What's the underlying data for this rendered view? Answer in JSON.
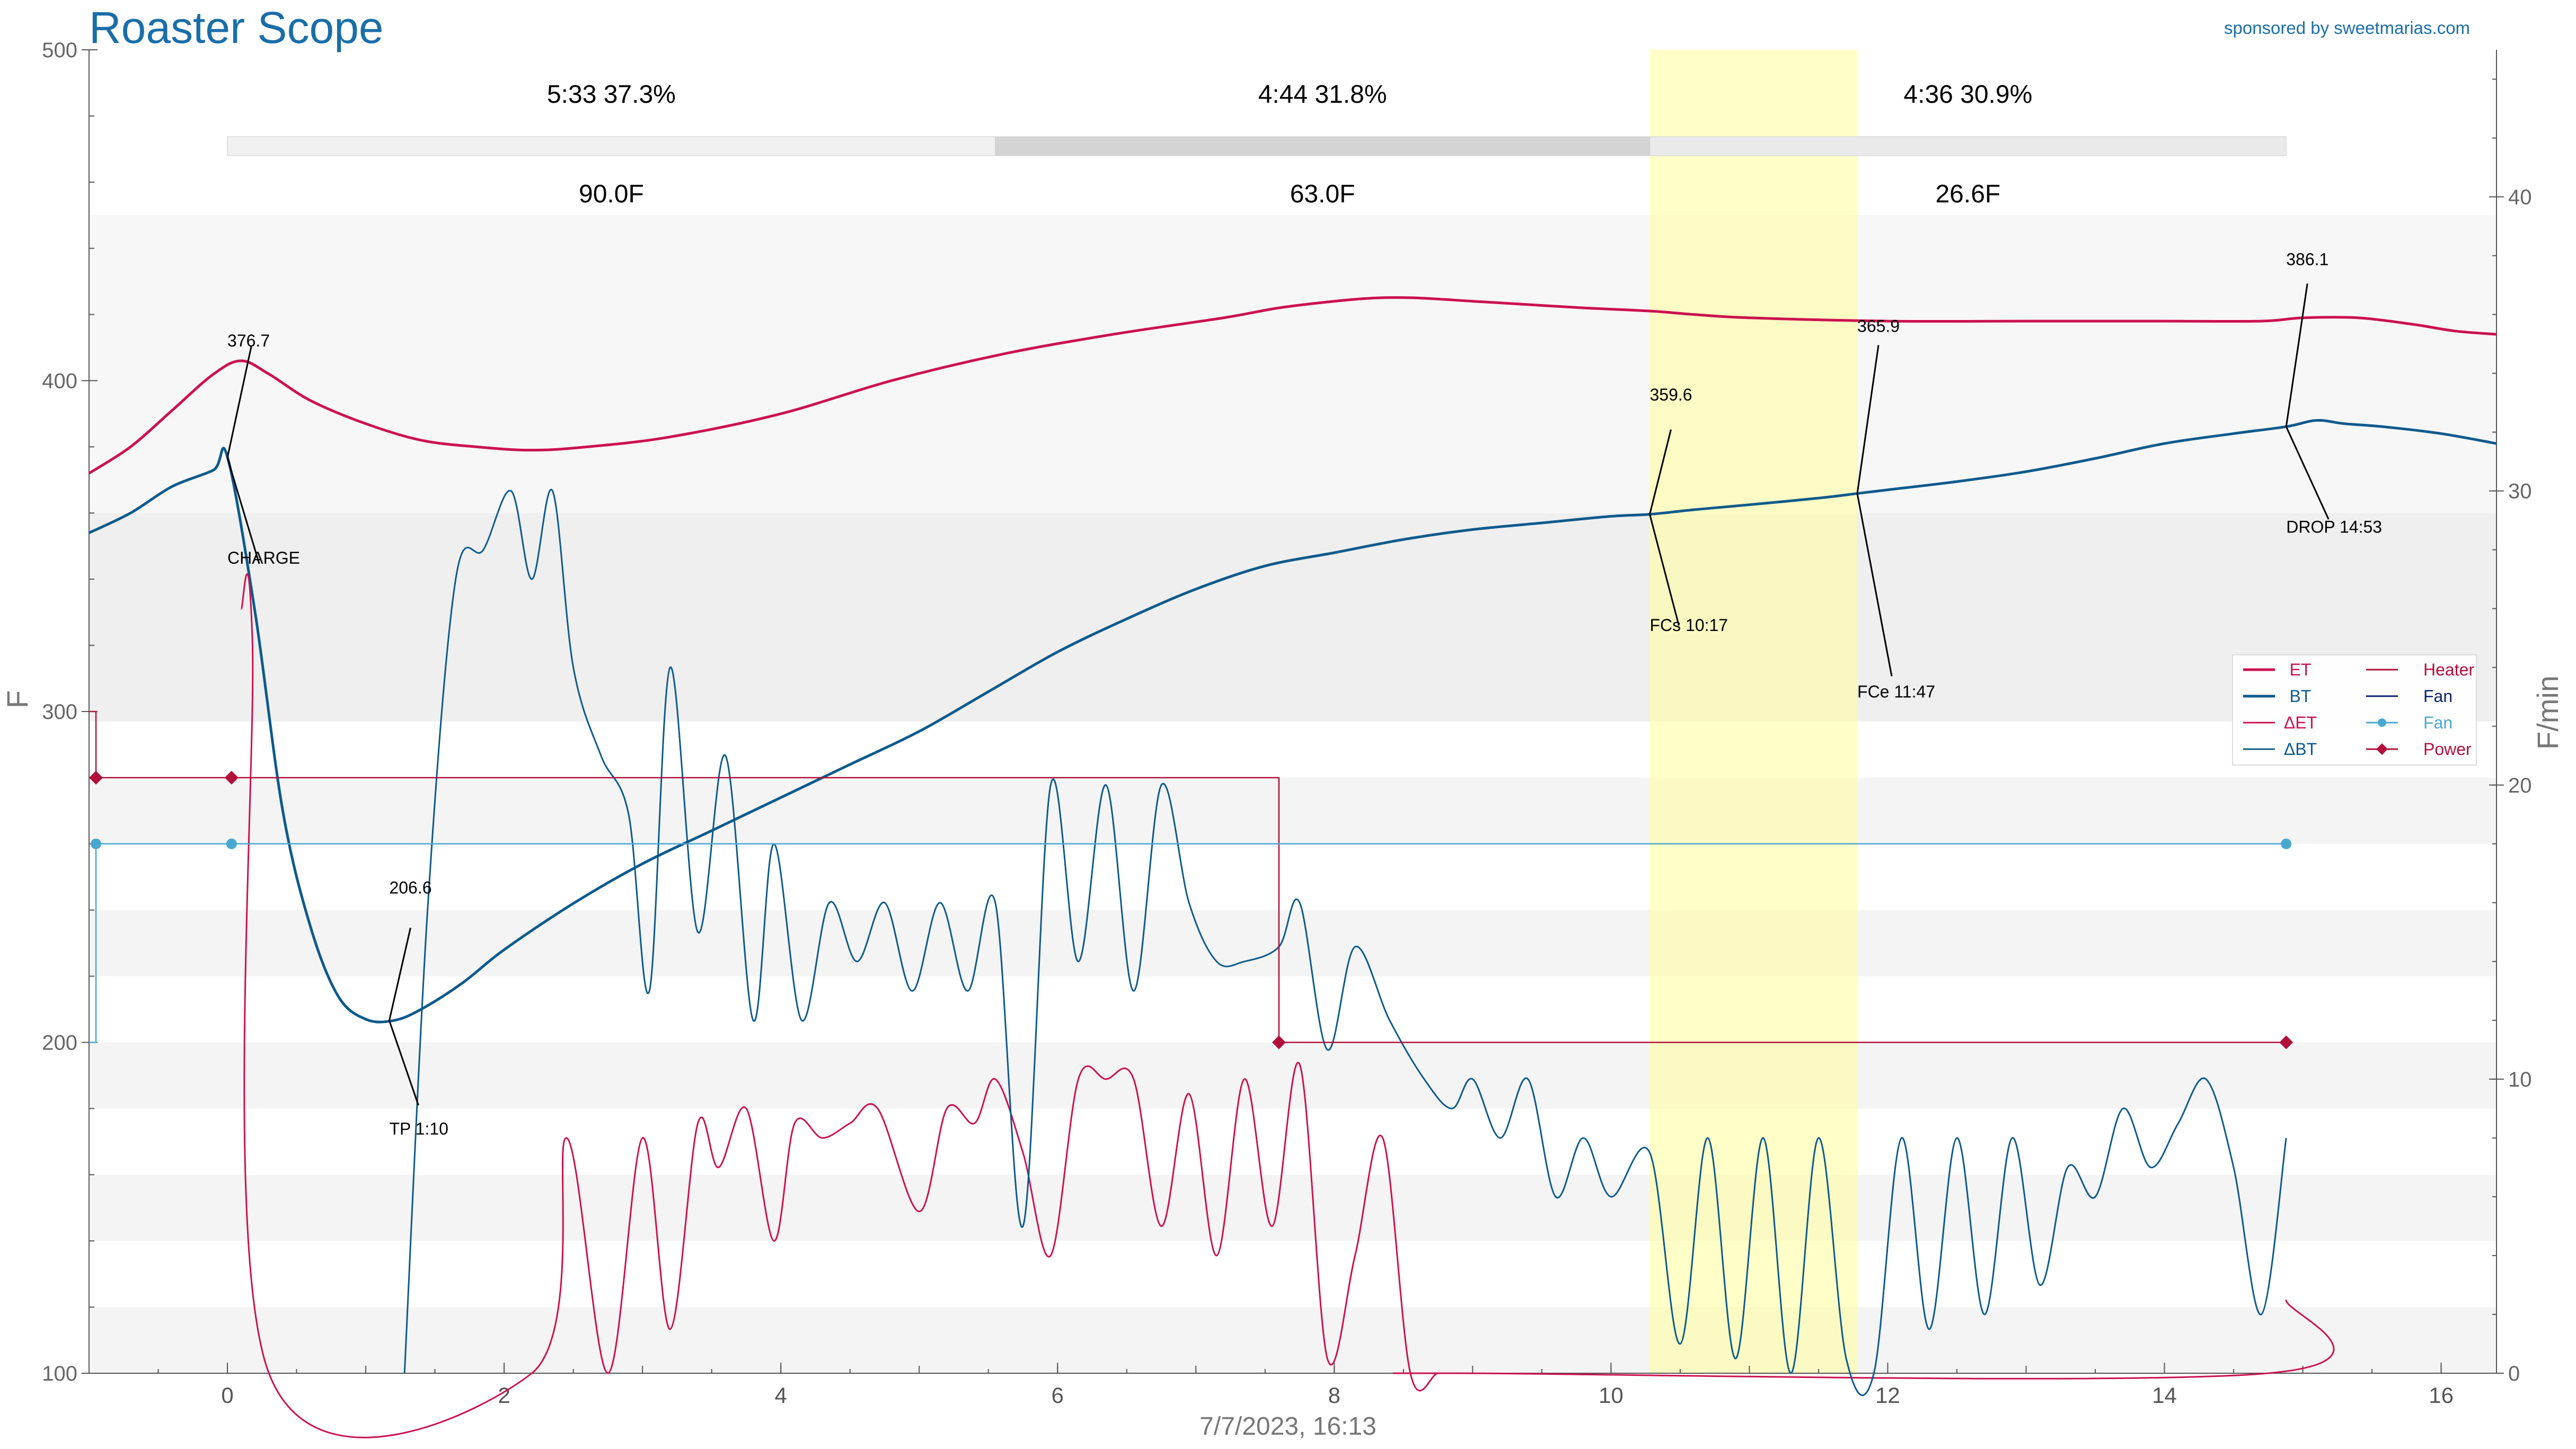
{
  "header": {
    "title": "Roaster Scope",
    "sponsor": "sponsored by sweetmarias.com"
  },
  "chart_data": {
    "type": "line",
    "xlabel": "7/7/2023, 16:13",
    "ylabel": "F",
    "ylabel_right": "F/min",
    "xlim": [
      -1,
      16.4
    ],
    "ylim": [
      100,
      500
    ],
    "ylim_right": [
      0,
      45
    ],
    "x_ticks": [
      0,
      2,
      4,
      6,
      8,
      10,
      12,
      14,
      16
    ],
    "y_ticks": [
      100,
      200,
      300,
      400,
      500
    ],
    "y_ticks_right": [
      0,
      10,
      20,
      30,
      40
    ],
    "phases": [
      {
        "time": "5:33",
        "percent": "37.3%",
        "delta": "90.0F",
        "x_start": 0,
        "x_end": 5.55
      },
      {
        "time": "4:44",
        "percent": "31.8%",
        "delta": "63.0F",
        "x_start": 5.55,
        "x_end": 10.28
      },
      {
        "time": "4:36",
        "percent": "30.9%",
        "delta": "26.6F",
        "x_start": 10.28,
        "x_end": 14.88
      }
    ],
    "first_crack_band": [
      10.28,
      11.78
    ],
    "background_bands_F": [
      [
        100,
        120
      ],
      [
        140,
        160
      ],
      [
        180,
        200
      ],
      [
        220,
        240
      ],
      [
        260,
        280
      ],
      [
        297,
        360
      ],
      [
        360,
        450
      ]
    ],
    "legend": {
      "position": "right",
      "items": [
        {
          "label": "ET",
          "color": "#cc1150",
          "style": "thick"
        },
        {
          "label": "BT",
          "color": "#0d5a8c",
          "style": "thick"
        },
        {
          "label": "ΔET",
          "color": "#cc1150",
          "style": "thin"
        },
        {
          "label": "ΔBT",
          "color": "#0d5a8c",
          "style": "thin"
        },
        {
          "label": "Heater",
          "color": "#b0103a",
          "style": "thin"
        },
        {
          "label": "Fan",
          "color": "#0c1f6e",
          "style": "thin"
        },
        {
          "label": "Fan",
          "color": "#4aa8d0",
          "style": "marker"
        },
        {
          "label": "Power",
          "color": "#b0103a",
          "style": "diamond"
        }
      ]
    },
    "events": [
      {
        "label": "CHARGE",
        "x": 0,
        "value": "376.7",
        "y": 376.7
      },
      {
        "label": "TP 1:10",
        "x": 1.17,
        "value": "206.6",
        "y": 206.6
      },
      {
        "label": "FCs 10:17",
        "x": 10.28,
        "value": "359.6",
        "y": 359.6
      },
      {
        "label": "FCe 11:47",
        "x": 11.78,
        "value": "365.9",
        "y": 365.9
      },
      {
        "label": "DROP 14:53",
        "x": 14.88,
        "value": "386.1",
        "y": 386.1
      }
    ],
    "series": [
      {
        "name": "ET",
        "color": "#cc1150",
        "axis": "left",
        "width": 5,
        "x": [
          -1,
          -0.7,
          -0.4,
          -0.1,
          0.1,
          0.3,
          0.6,
          1,
          1.4,
          1.8,
          2.2,
          2.6,
          3.2,
          4,
          4.8,
          5.6,
          6.4,
          7.2,
          7.6,
          8,
          8.3,
          8.6,
          9,
          9.4,
          9.8,
          10.3,
          10.6,
          11,
          12,
          13,
          14,
          14.7,
          15,
          15.4,
          15.8,
          16.1,
          16.4
        ],
        "y": [
          372,
          380,
          391,
          402,
          406,
          402,
          394,
          387,
          382,
          380,
          379,
          380,
          383,
          390,
          400,
          408,
          414,
          419,
          422,
          424,
          425,
          425,
          424,
          423,
          422,
          421,
          420,
          419,
          418,
          418,
          418,
          418,
          419,
          419,
          417,
          415,
          414
        ]
      },
      {
        "name": "BT",
        "color": "#0d5a8c",
        "axis": "left",
        "width": 5,
        "x": [
          -1,
          -0.7,
          -0.4,
          -0.1,
          0,
          0.2,
          0.4,
          0.6,
          0.8,
          1,
          1.2,
          1.4,
          1.7,
          2,
          2.5,
          3,
          3.5,
          4,
          4.5,
          5,
          5.5,
          6,
          6.5,
          7,
          7.5,
          8,
          8.5,
          9,
          9.5,
          10,
          10.28,
          10.6,
          11,
          11.5,
          11.78,
          12,
          12.5,
          13,
          13.5,
          14,
          14.5,
          14.88,
          15.1,
          15.3,
          15.6,
          16,
          16.4
        ],
        "y": [
          354,
          360,
          368,
          373,
          377,
          330,
          270,
          235,
          214,
          207,
          206.6,
          210,
          218,
          228,
          242,
          254,
          264,
          274,
          284,
          294,
          306,
          318,
          328,
          337,
          344,
          348,
          352,
          355,
          357,
          359,
          359.6,
          361,
          362.5,
          364.5,
          365.9,
          367,
          369.5,
          372.5,
          376.5,
          381,
          384,
          386.1,
          388,
          387,
          386,
          384,
          381
        ]
      },
      {
        "name": "ΔET",
        "color": "#cc1150",
        "axis": "right",
        "width": 3,
        "x": [
          0.1,
          0.18,
          0.3,
          2.2,
          2.45,
          2.75,
          3.0,
          3.2,
          3.4,
          3.55,
          3.75,
          3.95,
          4.1,
          4.3,
          4.5,
          4.7,
          5.0,
          5.2,
          5.4,
          5.55,
          5.75,
          5.95,
          6.15,
          6.35,
          6.55,
          6.75,
          6.95,
          7.15,
          7.35,
          7.55,
          7.75,
          7.95,
          8.15,
          8.35,
          8.55,
          8.75,
          8.9,
          14.75,
          14.88
        ],
        "y": [
          26,
          25,
          0,
          0,
          8,
          0,
          8,
          1.5,
          8.5,
          7,
          9,
          4.5,
          8.5,
          8,
          8.5,
          9,
          5.5,
          9,
          8.5,
          10,
          7.5,
          4,
          10,
          10,
          10,
          5,
          9.5,
          4,
          10,
          5,
          10.5,
          0.5,
          4,
          8,
          0,
          0,
          0,
          0,
          2.5
        ]
      },
      {
        "name": "ΔBT",
        "color": "#0d5a8c",
        "axis": "right",
        "width": 3,
        "x": [
          1.28,
          1.45,
          1.65,
          1.85,
          2.05,
          2.2,
          2.35,
          2.5,
          2.7,
          2.9,
          3.05,
          3.2,
          3.4,
          3.6,
          3.8,
          3.95,
          4.15,
          4.35,
          4.55,
          4.75,
          4.95,
          5.15,
          5.35,
          5.55,
          5.75,
          5.95,
          6.15,
          6.35,
          6.55,
          6.75,
          6.95,
          7.15,
          7.35,
          7.6,
          7.75,
          7.95,
          8.15,
          8.4,
          8.65,
          8.85,
          9.0,
          9.2,
          9.4,
          9.6,
          9.8,
          10.0,
          10.28,
          10.5,
          10.7,
          10.9,
          11.1,
          11.3,
          11.5,
          11.7,
          11.9,
          12.1,
          12.3,
          12.5,
          12.7,
          12.9,
          13.1,
          13.3,
          13.5,
          13.7,
          13.9,
          14.1,
          14.3,
          14.5,
          14.7,
          14.88
        ],
        "y": [
          0,
          16,
          27,
          28,
          30,
          27,
          30,
          24,
          21,
          19,
          13,
          24,
          15,
          21,
          12,
          18,
          12,
          16,
          14,
          16,
          13,
          16,
          13,
          16,
          5,
          20,
          14,
          20,
          13,
          20,
          16,
          14,
          14,
          14.5,
          16,
          11,
          14.5,
          12,
          10,
          9,
          10,
          8,
          10,
          6,
          8,
          6,
          7.5,
          1,
          8,
          0.5,
          8,
          0,
          8,
          0.5,
          0,
          8,
          1.5,
          8,
          2,
          8,
          3,
          7,
          6,
          9,
          7,
          8.5,
          10,
          7,
          2,
          8
        ]
      },
      {
        "name": "Heater",
        "color": "#b0103a",
        "axis": "left",
        "width": 2.5,
        "step": true,
        "x": [
          -1,
          -0.95,
          -0.95,
          7.6,
          7.6,
          14.88
        ],
        "y": [
          300,
          300,
          280,
          280,
          200,
          200
        ]
      },
      {
        "name": "Fan",
        "color": "#4aa8d0",
        "axis": "left",
        "width": 2.5,
        "step": true,
        "x": [
          -1,
          -0.95,
          -0.95,
          14.88
        ],
        "y": [
          200,
          200,
          260,
          260
        ]
      },
      {
        "name": "Fan",
        "color": "#4aa8d0",
        "axis": "left",
        "markers": "circle",
        "x": [
          -0.95,
          0.03,
          14.88
        ],
        "y": [
          260,
          260,
          260
        ]
      },
      {
        "name": "Power",
        "color": "#b0103a",
        "axis": "left",
        "markers": "diamond",
        "x": [
          -0.95,
          0.03,
          7.6,
          14.88
        ],
        "y": [
          280,
          280,
          200,
          200
        ]
      }
    ]
  }
}
